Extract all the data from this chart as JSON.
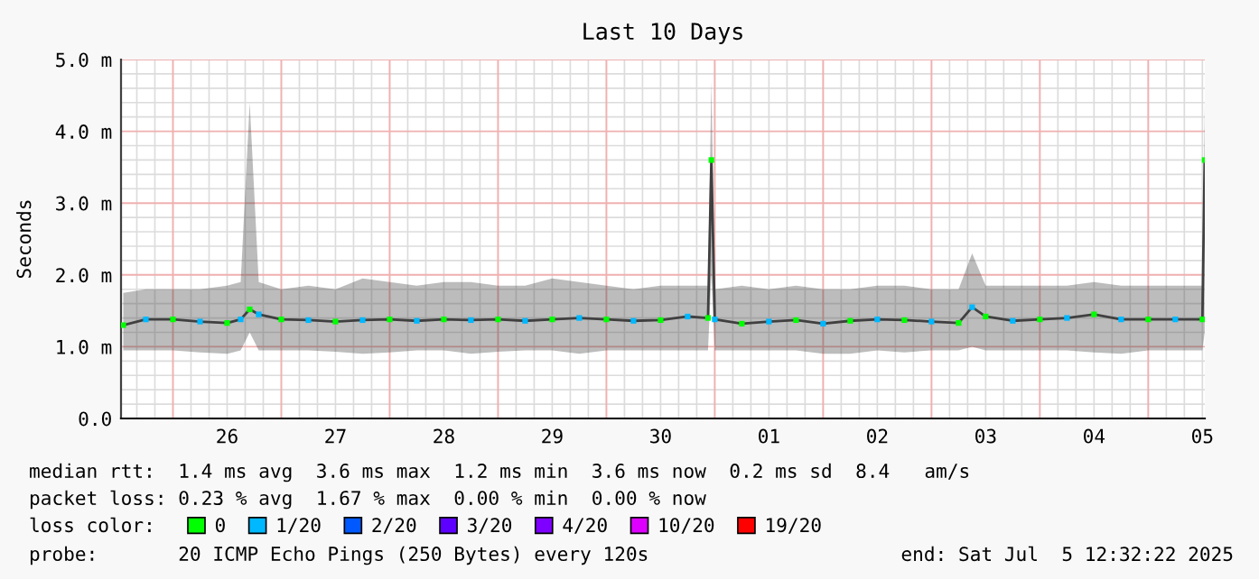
{
  "chart_data": {
    "type": "line",
    "title": "Last 10 Days",
    "ylabel": "Seconds",
    "legend_title": "loss color:",
    "x": [
      "2025-06-25T13:00",
      "2025-06-25T18:00",
      "2025-06-26T00:00",
      "2025-06-26T06:00",
      "2025-06-26T12:00",
      "2025-06-26T15:00",
      "2025-06-26T17:00",
      "2025-06-26T19:00",
      "2025-06-27T00:00",
      "2025-06-27T06:00",
      "2025-06-27T12:00",
      "2025-06-27T18:00",
      "2025-06-28T00:00",
      "2025-06-28T06:00",
      "2025-06-28T12:00",
      "2025-06-28T18:00",
      "2025-06-29T00:00",
      "2025-06-29T06:00",
      "2025-06-29T12:00",
      "2025-06-29T18:00",
      "2025-06-30T00:00",
      "2025-06-30T06:00",
      "2025-06-30T12:00",
      "2025-06-30T18:00",
      "2025-06-30T22:30",
      "2025-06-30T23:15",
      "2025-07-01T00:00",
      "2025-07-01T06:00",
      "2025-07-01T12:00",
      "2025-07-01T18:00",
      "2025-07-02T00:00",
      "2025-07-02T06:00",
      "2025-07-02T12:00",
      "2025-07-02T18:00",
      "2025-07-03T00:00",
      "2025-07-03T06:00",
      "2025-07-03T09:00",
      "2025-07-03T12:00",
      "2025-07-03T18:00",
      "2025-07-04T00:00",
      "2025-07-04T06:00",
      "2025-07-04T12:00",
      "2025-07-04T18:00",
      "2025-07-05T00:00",
      "2025-07-05T06:00",
      "2025-07-05T12:00",
      "2025-07-05T12:30"
    ],
    "series": [
      {
        "color": "#404040",
        "values": [
          1.3,
          1.38,
          1.38,
          1.35,
          1.33,
          1.38,
          1.52,
          1.45,
          1.38,
          1.37,
          1.35,
          1.37,
          1.38,
          1.36,
          1.38,
          1.37,
          1.38,
          1.36,
          1.38,
          1.4,
          1.38,
          1.36,
          1.37,
          1.42,
          1.4,
          3.6,
          1.38,
          1.32,
          1.35,
          1.37,
          1.32,
          1.36,
          1.38,
          1.37,
          1.35,
          1.33,
          1.55,
          1.42,
          1.36,
          1.38,
          1.4,
          1.45,
          1.38,
          1.38,
          1.38,
          1.38,
          3.6
        ],
        "lower": [
          0.95,
          0.95,
          0.95,
          0.92,
          0.9,
          0.95,
          1.2,
          0.95,
          0.95,
          0.95,
          0.93,
          0.9,
          0.92,
          0.95,
          0.95,
          0.9,
          0.93,
          0.95,
          0.95,
          0.9,
          0.95,
          0.95,
          0.95,
          0.95,
          0.95,
          2.0,
          0.95,
          0.95,
          0.95,
          0.95,
          0.9,
          0.9,
          0.95,
          0.92,
          0.95,
          0.95,
          1.0,
          0.95,
          0.95,
          0.95,
          0.95,
          0.92,
          0.9,
          0.95,
          0.95,
          0.95,
          1.2
        ],
        "upper": [
          1.75,
          1.8,
          1.8,
          1.8,
          1.85,
          1.9,
          4.4,
          1.9,
          1.8,
          1.85,
          1.8,
          1.95,
          1.9,
          1.85,
          1.9,
          1.9,
          1.85,
          1.85,
          1.95,
          1.9,
          1.85,
          1.8,
          1.85,
          1.85,
          1.85,
          4.7,
          1.8,
          1.85,
          1.8,
          1.85,
          1.8,
          1.8,
          1.85,
          1.85,
          1.8,
          1.8,
          2.3,
          1.85,
          1.85,
          1.85,
          1.85,
          1.9,
          1.85,
          1.85,
          1.85,
          1.85,
          4.4
        ]
      },
      {
        "name": "0",
        "type": "scatter",
        "marker": "square",
        "color": "#00ff00",
        "values": [
          1.3,
          null,
          1.38,
          null,
          1.33,
          null,
          1.52,
          null,
          1.38,
          null,
          1.35,
          null,
          1.38,
          null,
          1.38,
          null,
          1.38,
          null,
          1.38,
          null,
          1.38,
          null,
          1.37,
          null,
          1.4,
          3.6,
          null,
          1.32,
          null,
          1.37,
          null,
          1.36,
          null,
          1.37,
          null,
          1.33,
          null,
          1.42,
          null,
          1.38,
          null,
          1.45,
          null,
          1.38,
          null,
          1.38,
          3.6
        ]
      },
      {
        "name": "1/20",
        "type": "scatter",
        "marker": "square",
        "color": "#00b8ff",
        "values": [
          null,
          1.38,
          null,
          1.35,
          null,
          1.38,
          null,
          1.45,
          null,
          1.37,
          null,
          1.37,
          null,
          1.36,
          null,
          1.37,
          null,
          1.36,
          null,
          1.4,
          null,
          1.36,
          null,
          1.42,
          null,
          null,
          1.38,
          null,
          1.35,
          null,
          1.32,
          null,
          1.38,
          null,
          1.35,
          null,
          1.55,
          null,
          1.36,
          null,
          1.4,
          null,
          1.38,
          null,
          1.38,
          null,
          null
        ]
      },
      {
        "name": "2/20",
        "type": "scatter",
        "marker": "square",
        "color": "#0059ff",
        "values": [
          null,
          null,
          null,
          null,
          null,
          null,
          null,
          null,
          null,
          null,
          null,
          null,
          null,
          null,
          null,
          null,
          null,
          null,
          null,
          null,
          null,
          null,
          null,
          null,
          null,
          null,
          null,
          null,
          null,
          null,
          null,
          null,
          null,
          null,
          null,
          null,
          null,
          null,
          null,
          null,
          null,
          null,
          null,
          null,
          null,
          null,
          null
        ]
      },
      {
        "name": "3/20",
        "type": "scatter",
        "marker": "square",
        "color": "#5e00ff",
        "values": [
          null,
          null,
          null,
          null,
          null,
          null,
          null,
          null,
          null,
          null,
          null,
          null,
          null,
          null,
          null,
          null,
          null,
          null,
          null,
          null,
          null,
          null,
          null,
          null,
          null,
          null,
          null,
          null,
          null,
          null,
          null,
          null,
          null,
          null,
          null,
          null,
          null,
          null,
          null,
          null,
          null,
          null,
          null,
          null,
          null,
          null,
          null
        ]
      },
      {
        "name": "4/20",
        "type": "scatter",
        "marker": "square",
        "color": "#7e00ff",
        "values": [
          null,
          null,
          null,
          null,
          null,
          null,
          null,
          null,
          null,
          null,
          null,
          null,
          null,
          null,
          null,
          null,
          null,
          null,
          null,
          null,
          null,
          null,
          null,
          null,
          null,
          null,
          null,
          null,
          null,
          null,
          null,
          null,
          null,
          null,
          null,
          null,
          null,
          null,
          null,
          null,
          null,
          null,
          null,
          null,
          null,
          null,
          null
        ]
      },
      {
        "name": "10/20",
        "type": "scatter",
        "marker": "square",
        "color": "#dd00ff",
        "values": [
          null,
          null,
          null,
          null,
          null,
          null,
          null,
          null,
          null,
          null,
          null,
          null,
          null,
          null,
          null,
          null,
          null,
          null,
          null,
          null,
          null,
          null,
          null,
          null,
          null,
          null,
          null,
          null,
          null,
          null,
          null,
          null,
          null,
          null,
          null,
          null,
          null,
          null,
          null,
          null,
          null,
          null,
          null,
          null,
          null,
          null,
          null
        ]
      },
      {
        "name": "19/20",
        "type": "scatter",
        "marker": "square",
        "color": "#ff0000",
        "values": [
          null,
          null,
          null,
          null,
          null,
          null,
          null,
          null,
          null,
          null,
          null,
          null,
          null,
          null,
          null,
          null,
          null,
          null,
          null,
          null,
          null,
          null,
          null,
          null,
          null,
          null,
          null,
          null,
          null,
          null,
          null,
          null,
          null,
          null,
          null,
          null,
          null,
          null,
          null,
          null,
          null,
          null,
          null,
          null,
          null,
          null,
          null
        ]
      }
    ],
    "xlim": [
      "2025-06-25T12:30",
      "2025-07-05T12:32"
    ],
    "xticks": [
      {
        "value": "2025-06-26T00:00",
        "label": null
      },
      {
        "value": "2025-06-26T12:00",
        "label": "26"
      },
      {
        "value": "2025-06-27T00:00",
        "label": null
      },
      {
        "value": "2025-06-27T12:00",
        "label": "27"
      },
      {
        "value": "2025-06-28T00:00",
        "label": null
      },
      {
        "value": "2025-06-28T12:00",
        "label": "28"
      },
      {
        "value": "2025-06-29T00:00",
        "label": null
      },
      {
        "value": "2025-06-29T12:00",
        "label": "29"
      },
      {
        "value": "2025-06-30T00:00",
        "label": null
      },
      {
        "value": "2025-06-30T12:00",
        "label": "30"
      },
      {
        "value": "2025-07-01T00:00",
        "label": null
      },
      {
        "value": "2025-07-01T12:00",
        "label": "01"
      },
      {
        "value": "2025-07-02T00:00",
        "label": null
      },
      {
        "value": "2025-07-02T12:00",
        "label": "02"
      },
      {
        "value": "2025-07-03T00:00",
        "label": null
      },
      {
        "value": "2025-07-03T12:00",
        "label": "03"
      },
      {
        "value": "2025-07-04T00:00",
        "label": null
      },
      {
        "value": "2025-07-04T12:00",
        "label": "04"
      },
      {
        "value": "2025-07-05T00:00",
        "label": null
      },
      {
        "value": "2025-07-05T12:00",
        "label": "05"
      }
    ],
    "ylim": [
      0,
      5
    ],
    "yticks": [
      {
        "value": 0,
        "label": "0.0"
      },
      {
        "value": 1,
        "label": "1.0 m"
      },
      {
        "value": 2,
        "label": "2.0 m"
      },
      {
        "value": 3,
        "label": "3.0 m"
      },
      {
        "value": 4,
        "label": "4.0 m"
      },
      {
        "value": 5,
        "label": "5.0 m"
      }
    ],
    "grid": true,
    "legend": "bottom",
    "annotations": [
      "median rtt:  1.4 ms avg  3.6 ms max  1.2 ms min  3.6 ms now  0.2 ms sd  8.4   am/s",
      "packet loss: 0.23 % avg  1.67 % max  0.00 % min  0.00 % now",
      "probe:       20 ICMP Echo Pings (250 Bytes) every 120s",
      "end: Sat Jul  5 12:32:22 2025"
    ]
  }
}
